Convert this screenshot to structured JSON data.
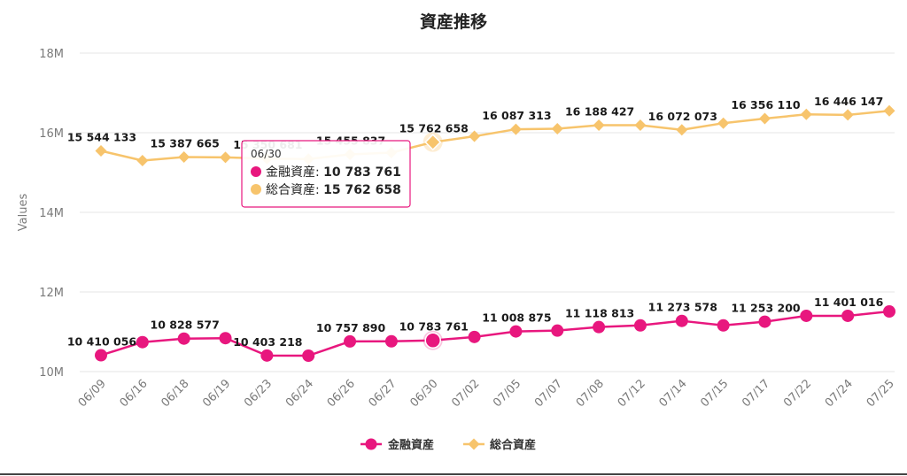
{
  "chart_data": {
    "type": "line",
    "title": "資産推移",
    "ylabel": "Values",
    "xlabel": "",
    "ylim": [
      10000000,
      18000000
    ],
    "y_ticks": [
      {
        "value": 10000000,
        "label": "10M"
      },
      {
        "value": 12000000,
        "label": "12M"
      },
      {
        "value": 14000000,
        "label": "14M"
      },
      {
        "value": 16000000,
        "label": "16M"
      },
      {
        "value": 18000000,
        "label": "18M"
      }
    ],
    "categories": [
      "06/09",
      "06/16",
      "06/18",
      "06/19",
      "06/23",
      "06/24",
      "06/26",
      "06/27",
      "06/30",
      "07/02",
      "07/05",
      "07/07",
      "07/08",
      "07/12",
      "07/14",
      "07/15",
      "07/17",
      "07/22",
      "07/24",
      "07/25"
    ],
    "grid": true,
    "legend_position": "bottom",
    "series": [
      {
        "name": "金融資産",
        "color": "#e8177e",
        "marker": "circle",
        "values": [
          10410056,
          10740000,
          10828577,
          10840000,
          10403218,
          10400000,
          10757890,
          10760000,
          10783761,
          10870000,
          11008875,
          11030000,
          11118813,
          11160000,
          11273578,
          11160000,
          11253200,
          11401016,
          11401016,
          11510000
        ],
        "labels": [
          "10 410 056",
          "",
          "10 828 577",
          "",
          "10 403 218",
          "",
          "10 757 890",
          "",
          "10 783 761",
          "",
          "11 008 875",
          "",
          "11 118 813",
          "",
          "11 273 578",
          "",
          "11 253 200",
          "",
          "11 401 016",
          ""
        ]
      },
      {
        "name": "総合資産",
        "color": "#f7c46c",
        "marker": "diamond",
        "values": [
          15544133,
          15300000,
          15387665,
          15380000,
          15350681,
          15340000,
          15455837,
          15500000,
          15762658,
          15910000,
          16087313,
          16100000,
          16188427,
          16190000,
          16072073,
          16240000,
          16356110,
          16460000,
          16446147,
          16550000
        ],
        "labels": [
          "15 544 133",
          "",
          "15 387 665",
          "",
          "15 350 681",
          "",
          "15 455 837",
          "",
          "15 762 658",
          "",
          "16 087 313",
          "",
          "16 188 427",
          "",
          "16 072 073",
          "",
          "16 356 110",
          "",
          "16 446 147",
          ""
        ]
      }
    ],
    "tooltip": {
      "title": "06/30",
      "rows": [
        {
          "name": "金融資産",
          "value": "10 783 761",
          "color": "#e8177e"
        },
        {
          "name": "総合資産",
          "value": "15 762 658",
          "color": "#f7c46c"
        }
      ]
    }
  }
}
